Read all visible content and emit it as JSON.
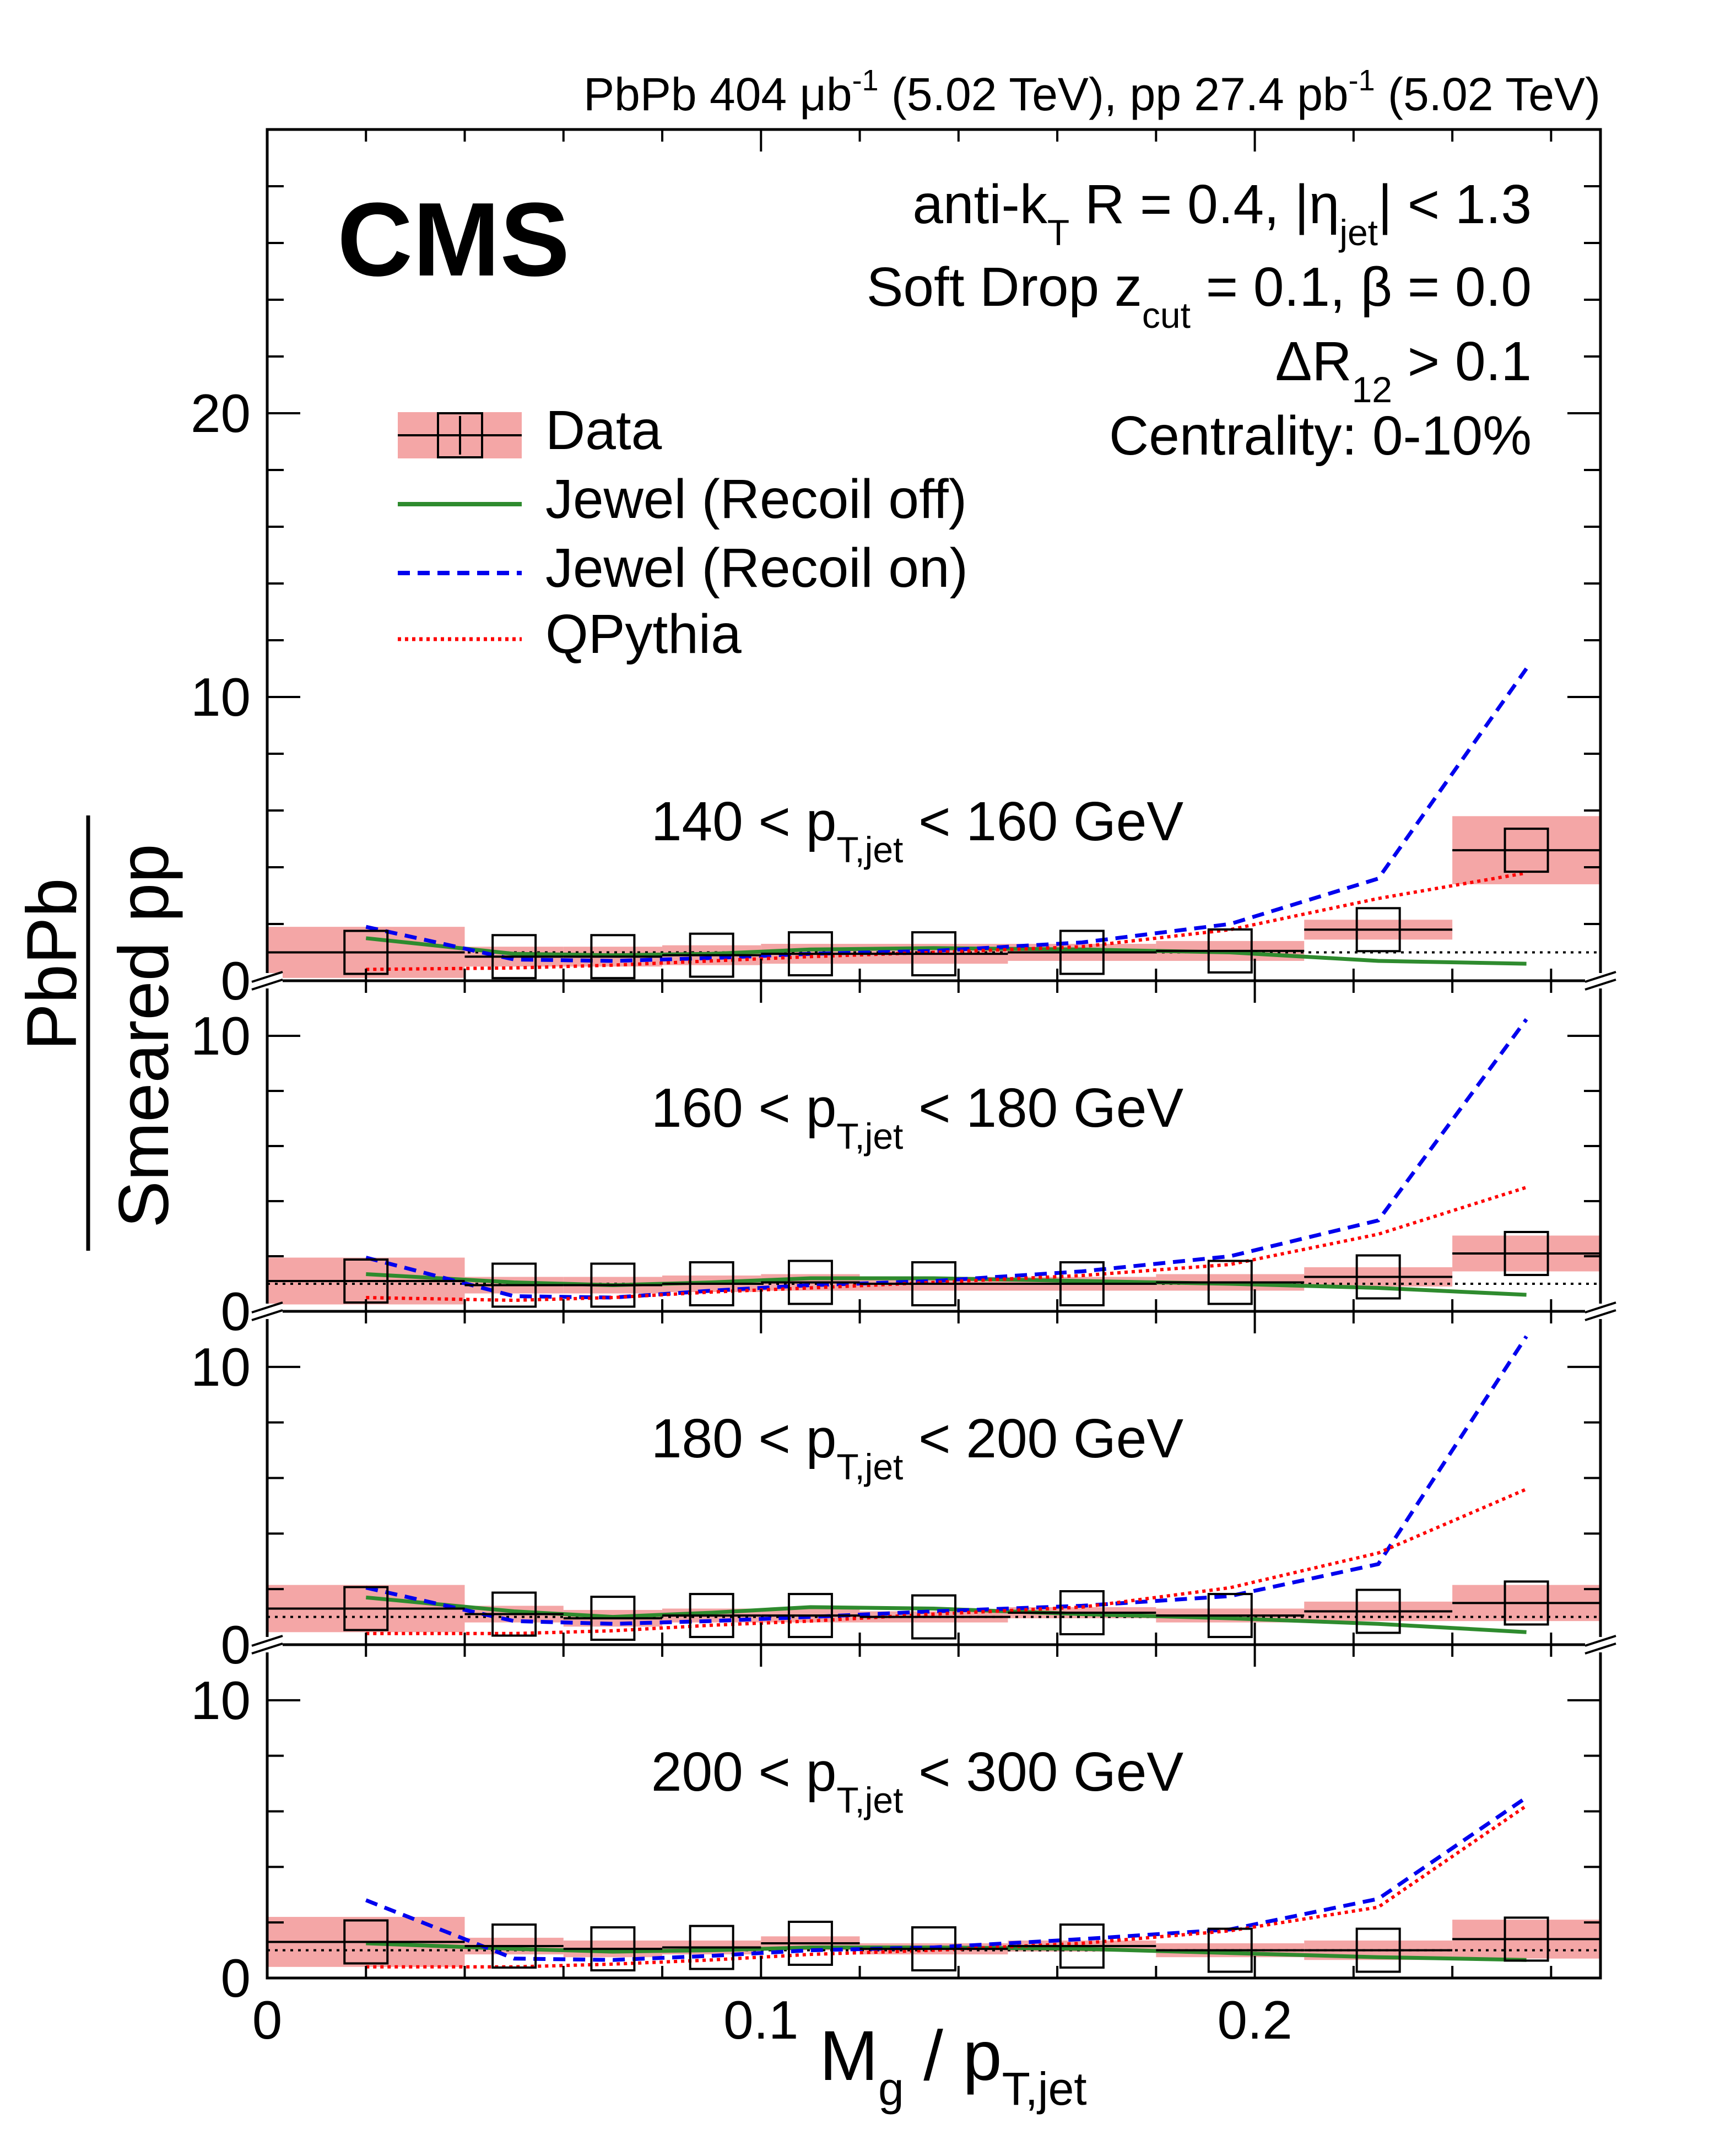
{
  "header": {
    "lumi_parts": [
      "PbPb 404 ",
      "μb",
      "-1",
      " (5.02 TeV), pp 27.4 pb",
      "-1",
      " (5.02 TeV)"
    ]
  },
  "experiment": "CMS",
  "info": {
    "line1": [
      "anti-k",
      "T",
      " R = 0.4, |η",
      "jet",
      "| < 1.3"
    ],
    "line2": [
      "Soft Drop z",
      "cut",
      " = 0.1, β = 0.0"
    ],
    "line3": [
      "ΔR",
      "12",
      " > 0.1"
    ],
    "line4": "Centrality: 0-10%"
  },
  "legend": [
    {
      "key": "data",
      "label": "Data"
    },
    {
      "key": "recoil_off",
      "label": "Jewel (Recoil off)"
    },
    {
      "key": "recoil_on",
      "label": "Jewel (Recoil on)"
    },
    {
      "key": "qpythia",
      "label": "QPythia"
    }
  ],
  "axes": {
    "xlabel_parts": [
      "M",
      "g",
      " / p",
      "T,jet"
    ],
    "ylabel_num": "PbPb",
    "ylabel_den": "Smeared pp",
    "x_ticks": [
      "0",
      "0.1",
      "0.2"
    ],
    "top_y_ticks": [
      "0",
      "10",
      "20"
    ],
    "lower_y_ticks": [
      "0",
      "10"
    ]
  },
  "colors": {
    "data_band": "#f4a6a6",
    "recoil_off": "#2e8b2e",
    "recoil_on": "#0000ee",
    "qpythia": "#ff0000"
  },
  "chart_data": {
    "type": "line",
    "xlim": [
      0,
      0.27
    ],
    "x_edges": [
      0,
      0.04,
      0.06,
      0.08,
      0.1,
      0.12,
      0.15,
      0.18,
      0.21,
      0.24,
      0.27
    ],
    "x_centers": [
      0.02,
      0.05,
      0.07,
      0.09,
      0.11,
      0.135,
      0.165,
      0.195,
      0.225,
      0.255
    ],
    "reference_line": 1,
    "panels": [
      {
        "label_parts": [
          "140 < p",
          "T,jet",
          " < 160 GeV"
        ],
        "ylim": [
          0,
          30
        ],
        "data": [
          1.0,
          0.85,
          0.85,
          0.9,
          0.95,
          0.95,
          1.0,
          1.05,
          1.8,
          4.6
        ],
        "syst": [
          0.9,
          0.35,
          0.35,
          0.35,
          0.35,
          0.35,
          0.3,
          0.35,
          0.35,
          1.2
        ],
        "recoil_off": [
          1.5,
          0.95,
          0.9,
          0.95,
          1.1,
          1.15,
          1.1,
          1.0,
          0.7,
          0.6
        ],
        "recoil_on": [
          1.9,
          0.75,
          0.7,
          0.8,
          0.95,
          1.05,
          1.35,
          2.0,
          3.6,
          11.0
        ],
        "qpythia": [
          0.4,
          0.45,
          0.55,
          0.7,
          0.85,
          1.0,
          1.2,
          1.8,
          2.9,
          3.8
        ]
      },
      {
        "label_parts": [
          "160 < p",
          "T,jet",
          " < 180 GeV"
        ],
        "ylim": [
          0,
          12
        ],
        "data": [
          1.1,
          0.95,
          0.95,
          1.0,
          1.05,
          1.0,
          1.0,
          1.05,
          1.25,
          2.1
        ],
        "syst": [
          0.85,
          0.3,
          0.3,
          0.3,
          0.3,
          0.25,
          0.25,
          0.3,
          0.35,
          0.65
        ],
        "recoil_off": [
          1.35,
          1.05,
          0.95,
          1.05,
          1.2,
          1.2,
          1.1,
          1.0,
          0.85,
          0.6
        ],
        "recoil_on": [
          1.95,
          0.55,
          0.5,
          0.75,
          0.95,
          1.1,
          1.45,
          2.0,
          3.3,
          10.6
        ],
        "qpythia": [
          0.5,
          0.4,
          0.5,
          0.7,
          0.85,
          1.05,
          1.3,
          1.7,
          2.8,
          4.5
        ]
      },
      {
        "label_parts": [
          "180 < p",
          "T,jet",
          " < 200 GeV"
        ],
        "ylim": [
          0,
          12
        ],
        "data": [
          1.3,
          1.1,
          0.95,
          1.05,
          1.05,
          1.0,
          1.15,
          1.05,
          1.2,
          1.5
        ],
        "syst": [
          0.85,
          0.3,
          0.3,
          0.25,
          0.25,
          0.2,
          0.2,
          0.25,
          0.35,
          0.65
        ],
        "recoil_off": [
          1.7,
          1.2,
          1.0,
          1.15,
          1.35,
          1.3,
          1.1,
          0.95,
          0.75,
          0.45
        ],
        "recoil_on": [
          2.05,
          0.85,
          0.75,
          0.85,
          1.0,
          1.2,
          1.4,
          1.75,
          2.9,
          11.1
        ],
        "qpythia": [
          0.4,
          0.4,
          0.5,
          0.7,
          0.85,
          1.1,
          1.35,
          2.05,
          3.3,
          5.6
        ]
      },
      {
        "label_parts": [
          "200 < p",
          "T,jet",
          " < 300 GeV"
        ],
        "ylim": [
          0,
          12
        ],
        "data": [
          1.3,
          1.15,
          1.05,
          1.1,
          1.25,
          1.05,
          1.15,
          1.0,
          1.0,
          1.4
        ],
        "syst": [
          0.9,
          0.3,
          0.3,
          0.25,
          0.25,
          0.2,
          0.2,
          0.25,
          0.35,
          0.7
        ],
        "recoil_off": [
          1.25,
          1.05,
          0.95,
          1.0,
          1.1,
          1.1,
          1.05,
          0.9,
          0.75,
          0.65
        ],
        "recoil_on": [
          2.8,
          0.7,
          0.65,
          0.8,
          1.0,
          1.1,
          1.4,
          1.75,
          2.85,
          6.5
        ],
        "qpythia": [
          0.4,
          0.4,
          0.5,
          0.65,
          0.85,
          1.0,
          1.25,
          1.7,
          2.55,
          6.2
        ]
      }
    ]
  }
}
